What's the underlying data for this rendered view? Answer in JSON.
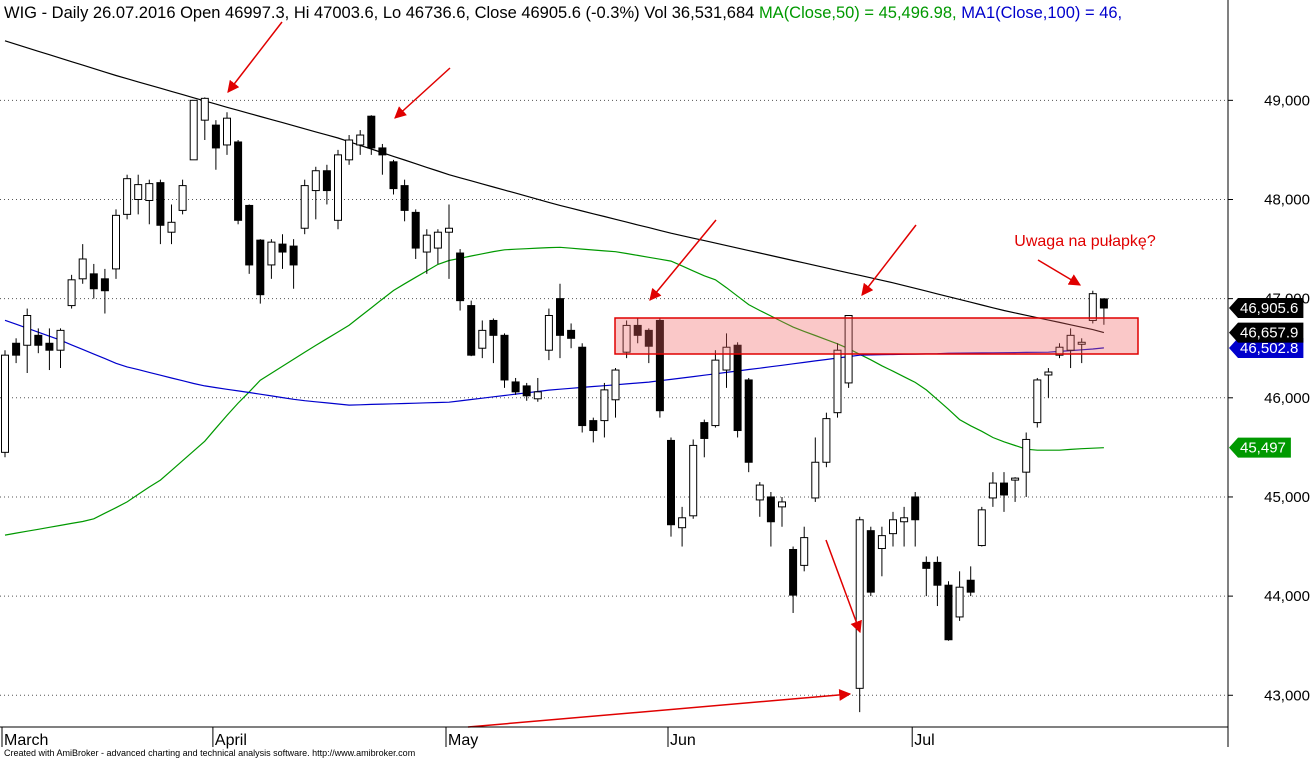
{
  "chart_data": {
    "type": "candlestick",
    "title": "WIG - Daily 26.07.2016 Open 46997.3, Hi 47003.6, Lo 46736.6, Close 46905.6 (-0.3%) Vol 36,531,684",
    "footer": "Created with AmiBroker - advanced charting and technical analysis software. http://www.amibroker.com",
    "annotations": [
      "Uwaga na pułapkę?"
    ],
    "categories": [
      "March",
      null,
      null,
      null,
      null,
      null,
      null,
      null,
      null,
      null,
      null,
      null,
      null,
      null,
      null,
      null,
      null,
      null,
      null,
      "April",
      null,
      null,
      null,
      null,
      null,
      null,
      null,
      null,
      null,
      null,
      null,
      null,
      null,
      null,
      null,
      null,
      null,
      null,
      null,
      null,
      "May",
      null,
      null,
      null,
      null,
      null,
      null,
      null,
      null,
      null,
      null,
      null,
      null,
      null,
      null,
      null,
      null,
      null,
      null,
      null,
      "Jun",
      null,
      null,
      null,
      null,
      null,
      null,
      null,
      null,
      null,
      null,
      null,
      null,
      null,
      null,
      null,
      null,
      null,
      null,
      null,
      null,
      null,
      "Jul",
      null,
      null,
      null,
      null,
      null,
      null,
      null,
      null,
      null,
      null,
      null,
      null,
      null,
      null,
      null,
      null,
      null
    ],
    "open": [
      45450,
      46550,
      46530,
      46630,
      46550,
      46480,
      46930,
      47200,
      47250,
      47200,
      47300,
      47850,
      48000,
      47990,
      48170,
      47670,
      47890,
      48400,
      48800,
      48750,
      48550,
      48580,
      47940,
      47590,
      47340,
      47550,
      47530,
      47710,
      48090,
      48290,
      47790,
      48400,
      48550,
      48840,
      48520,
      48380,
      48140,
      47870,
      47470,
      47510,
      47670,
      47460,
      46930,
      46500,
      46780,
      46630,
      46160,
      46120,
      45990,
      46480,
      47000,
      46680,
      46510,
      45770,
      45770,
      45980,
      46460,
      46730,
      46680,
      46780,
      45570,
      44690,
      44810,
      45750,
      45720,
      46280,
      46530,
      46180,
      44970,
      45000,
      44900,
      44470,
      44310,
      44990,
      45350,
      45850,
      46150,
      43070,
      44660,
      44480,
      44630,
      44750,
      45000,
      44340,
      44340,
      44110,
      43790,
      44160,
      44510,
      44990,
      45140,
      45170,
      45250,
      45750,
      46230,
      46430,
      46480,
      46540,
      46780,
      46997.3
    ],
    "high": [
      46480,
      46600,
      46900,
      46700,
      46700,
      46700,
      47240,
      47550,
      47350,
      47300,
      47900,
      48250,
      48250,
      48200,
      48200,
      47950,
      48200,
      49000,
      49030,
      48800,
      48880,
      48600,
      47950,
      47600,
      47600,
      47650,
      47600,
      48200,
      48330,
      48350,
      48500,
      48650,
      48700,
      48850,
      48560,
      48400,
      48200,
      47900,
      47700,
      47700,
      47950,
      47500,
      46980,
      46780,
      46800,
      46650,
      46200,
      46150,
      46200,
      46900,
      47150,
      46750,
      46550,
      45800,
      46150,
      46300,
      46780,
      46800,
      46700,
      46800,
      45600,
      44900,
      45580,
      45780,
      46480,
      46650,
      46560,
      46200,
      45150,
      45050,
      45000,
      44500,
      44700,
      45600,
      45850,
      46550,
      46830,
      44800,
      44700,
      44700,
      44850,
      44900,
      45050,
      44400,
      44400,
      44150,
      44250,
      44300,
      44900,
      45250,
      45250,
      45200,
      45650,
      46200,
      46300,
      46550,
      46700,
      46600,
      47080,
      47003.6
    ],
    "low": [
      45400,
      46350,
      46250,
      46450,
      46280,
      46300,
      46900,
      47150,
      47000,
      46850,
      47200,
      47800,
      47850,
      47750,
      47550,
      47550,
      47850,
      48400,
      48600,
      48300,
      48450,
      47750,
      47250,
      46950,
      47200,
      47300,
      47100,
      47650,
      47800,
      47950,
      47700,
      48350,
      48450,
      48450,
      48250,
      48050,
      47780,
      47400,
      47250,
      47350,
      47200,
      46880,
      46420,
      46400,
      46350,
      46100,
      46030,
      45970,
      45960,
      46380,
      46400,
      46500,
      45650,
      45550,
      45600,
      45800,
      46400,
      46550,
      46350,
      45800,
      44600,
      44500,
      44780,
      45400,
      45700,
      46100,
      45600,
      45250,
      44800,
      44500,
      44700,
      43830,
      44250,
      44950,
      45300,
      45800,
      46100,
      42830,
      44000,
      44200,
      44500,
      44500,
      44500,
      44000,
      43900,
      43550,
      43750,
      44000,
      44500,
      44900,
      44850,
      44950,
      45000,
      45700,
      46000,
      46400,
      46300,
      46350,
      46750,
      46736.6
    ],
    "close": [
      46430,
      46430,
      46830,
      46530,
      46480,
      46680,
      47190,
      47400,
      47100,
      47080,
      47840,
      48210,
      48150,
      48160,
      47740,
      47770,
      48140,
      49000,
      49020,
      48520,
      48820,
      47790,
      47340,
      47040,
      47570,
      47470,
      47340,
      48140,
      48290,
      48090,
      48450,
      48600,
      48650,
      48520,
      48450,
      48110,
      47890,
      47510,
      47640,
      47670,
      47710,
      46980,
      46430,
      46680,
      46630,
      46180,
      46060,
      46020,
      46060,
      46830,
      46630,
      46600,
      45720,
      45670,
      46080,
      46280,
      46730,
      46630,
      46520,
      45870,
      44720,
      44790,
      45520,
      45590,
      46380,
      46510,
      45670,
      45350,
      45120,
      44750,
      44950,
      44010,
      44590,
      45350,
      45790,
      46480,
      46830,
      44770,
      44040,
      44610,
      44770,
      44790,
      44770,
      44280,
      44110,
      43560,
      44090,
      44040,
      44870,
      45140,
      45020,
      45190,
      45580,
      46180,
      46260,
      46510,
      46630,
      46560,
      47050,
      46905.6
    ],
    "close_label": "46,905.6",
    "up_color": "#ffffff",
    "down_color": "#000000",
    "series": [
      {
        "color": "#000000",
        "last_label": "46,657.9",
        "values": [
          49600,
          49565,
          49530,
          49495,
          49460,
          49425,
          49390,
          49355,
          49320,
          49285,
          49250,
          49218,
          49186,
          49154,
          49122,
          49090,
          49058,
          49026,
          48994,
          48962,
          48930,
          48899,
          48868,
          48837,
          48806,
          48775,
          48744,
          48713,
          48682,
          48651,
          48620,
          48583,
          48546,
          48509,
          48472,
          48435,
          48398,
          48361,
          48324,
          48287,
          48250,
          48219,
          48188,
          48157,
          48126,
          48095,
          48064,
          48033,
          48002,
          47971,
          47940,
          47912,
          47884,
          47856,
          47828,
          47800,
          47772,
          47744,
          47716,
          47688,
          47660,
          47635,
          47610,
          47585,
          47560,
          47535,
          47510,
          47485,
          47460,
          47435,
          47410,
          47385,
          47360,
          47335,
          47310,
          47285,
          47260,
          47235,
          47210,
          47185,
          47160,
          47132,
          47104,
          47076,
          47048,
          47020,
          46992,
          46964,
          46936,
          46908,
          46880,
          46856,
          46832,
          46808,
          46784,
          46760,
          46736,
          46712,
          46688,
          46657.9
        ]
      },
      {
        "name": "MA(Close,50) = 45,496.98,",
        "color": "#009900",
        "last_label": "45,497",
        "values": [
          44615,
          44635,
          44655,
          44674,
          44694,
          44713,
          44733,
          44752,
          44780,
          44836,
          44892,
          44950,
          45026,
          45100,
          45170,
          45268,
          45366,
          45464,
          45562,
          45693,
          45823,
          45947,
          46060,
          46178,
          46248,
          46318,
          46388,
          46460,
          46528,
          46596,
          46664,
          46732,
          46820,
          46907,
          46995,
          47082,
          47150,
          47215,
          47280,
          47345,
          47385,
          47407,
          47430,
          47452,
          47474,
          47493,
          47499,
          47504,
          47510,
          47515,
          47518,
          47509,
          47500,
          47491,
          47482,
          47473,
          47455,
          47436,
          47417,
          47398,
          47379,
          47330,
          47280,
          47230,
          47190,
          47110,
          47025,
          46940,
          46880,
          46825,
          46769,
          46713,
          46670,
          46628,
          46586,
          46545,
          46495,
          46439,
          46383,
          46323,
          46268,
          46212,
          46155,
          46080,
          45982,
          45884,
          45780,
          45718,
          45662,
          45600,
          45556,
          45519,
          45482,
          45472,
          45472,
          45472,
          45480,
          45487,
          45492,
          45496.98
        ]
      },
      {
        "name": "MA1(Close,100) = 46,",
        "color": "#0000cc",
        "last_label": "46,502.8",
        "values": [
          46782,
          46742,
          46702,
          46662,
          46621,
          46581,
          46534,
          46488,
          46441,
          46395,
          46348,
          46312,
          46284,
          46256,
          46228,
          46200,
          46172,
          46144,
          46120,
          46103,
          46086,
          46070,
          46053,
          46036,
          46019,
          46002,
          45985,
          45971,
          45960,
          45949,
          45937,
          45926,
          45929,
          45933,
          45936,
          45940,
          45943,
          45946,
          45950,
          45953,
          45956,
          45969,
          45983,
          45996,
          46010,
          46023,
          46037,
          46050,
          46064,
          46078,
          46087,
          46096,
          46105,
          46114,
          46122,
          46131,
          46140,
          46149,
          46158,
          46172,
          46186,
          46200,
          46214,
          46228,
          46242,
          46256,
          46270,
          46285,
          46299,
          46314,
          46328,
          46343,
          46357,
          46372,
          46386,
          46401,
          46416,
          46430,
          46433,
          46435,
          46437,
          46439,
          46441,
          46443,
          46445,
          46450,
          46451,
          46452,
          46453,
          46454,
          46455,
          46456,
          46458,
          46459,
          46460,
          46468,
          46476,
          46484,
          46492,
          46502.8
        ]
      }
    ],
    "ylim": [
      42680,
      49790
    ],
    "yticks": [
      {
        "value": 43000,
        "label": "43,000"
      },
      {
        "value": 44000,
        "label": "44,000"
      },
      {
        "value": 45000,
        "label": "45,000"
      },
      {
        "value": 46000,
        "label": "46,000"
      },
      {
        "value": 47000,
        "label": "47,000"
      },
      {
        "value": 48000,
        "label": "48,000"
      },
      {
        "value": 49000,
        "label": "49,000"
      }
    ],
    "grid": true
  }
}
